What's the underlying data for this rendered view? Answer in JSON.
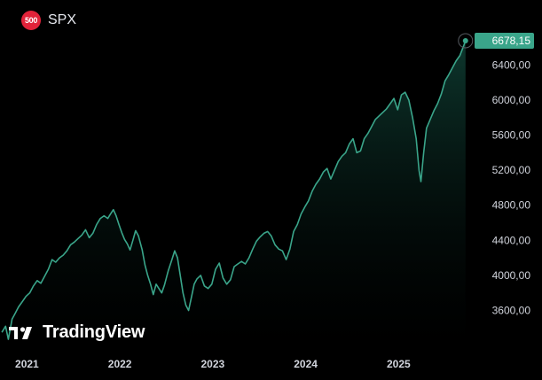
{
  "header": {
    "badge_text": "500",
    "symbol": "SPX"
  },
  "logo": {
    "text": "TradingView"
  },
  "colors": {
    "background": "#000000",
    "line": "#3aa58a",
    "area_top": "#0e3a30",
    "label_bg": "#3aa58a",
    "badge": "#e2233a",
    "axis_text": "#d1d4dc"
  },
  "chart_data": {
    "type": "area",
    "title": "SPX",
    "last_value": 6678.15,
    "last_value_label": "6678,15",
    "y_ticks": [
      3600,
      4000,
      4400,
      4800,
      5200,
      5600,
      6000,
      6400
    ],
    "y_tick_labels": [
      "3600,00",
      "4000,00",
      "4400,00",
      "4800,00",
      "5200,00",
      "5600,00",
      "6000,00",
      "6400,00"
    ],
    "x_ticks": [
      2021,
      2022,
      2023,
      2024,
      2025
    ],
    "x_tick_labels": [
      "2021",
      "2022",
      "2023",
      "2024",
      "2025"
    ],
    "x_range": [
      2020.74,
      2025.8
    ],
    "y_range": [
      3180,
      6900
    ],
    "series": [
      {
        "x": [
          2020.76,
          2020.8,
          2020.83,
          2020.87,
          2020.9,
          2020.94,
          2020.98,
          2021.02,
          2021.06,
          2021.1,
          2021.14,
          2021.18,
          2021.22,
          2021.26,
          2021.3,
          2021.34,
          2021.38,
          2021.42,
          2021.46,
          2021.5,
          2021.54,
          2021.58,
          2021.62,
          2021.66,
          2021.7,
          2021.74,
          2021.78,
          2021.82,
          2021.86,
          2021.9,
          2021.93,
          2021.96,
          2021.99,
          2022.02,
          2022.05,
          2022.08,
          2022.11,
          2022.14,
          2022.17,
          2022.2,
          2022.23,
          2022.27,
          2022.3,
          2022.33,
          2022.36,
          2022.39,
          2022.42,
          2022.45,
          2022.48,
          2022.51,
          2022.55,
          2022.59,
          2022.62,
          2022.65,
          2022.68,
          2022.71,
          2022.74,
          2022.77,
          2022.8,
          2022.83,
          2022.86,
          2022.9,
          2022.94,
          2022.98,
          2023.02,
          2023.06,
          2023.1,
          2023.14,
          2023.18,
          2023.22,
          2023.26,
          2023.3,
          2023.34,
          2023.38,
          2023.42,
          2023.46,
          2023.5,
          2023.54,
          2023.58,
          2023.62,
          2023.66,
          2023.7,
          2023.74,
          2023.78,
          2023.82,
          2023.86,
          2023.9,
          2023.94,
          2023.98,
          2024.02,
          2024.06,
          2024.1,
          2024.14,
          2024.18,
          2024.22,
          2024.26,
          2024.3,
          2024.34,
          2024.38,
          2024.42,
          2024.46,
          2024.5,
          2024.54,
          2024.58,
          2024.62,
          2024.66,
          2024.7,
          2024.74,
          2024.78,
          2024.82,
          2024.86,
          2024.9,
          2024.94,
          2024.98,
          2025.02,
          2025.06,
          2025.1,
          2025.14,
          2025.18,
          2025.22,
          2025.25,
          2025.27,
          2025.3,
          2025.33,
          2025.37,
          2025.41,
          2025.45,
          2025.49,
          2025.53,
          2025.57,
          2025.61,
          2025.65,
          2025.69,
          2025.73,
          2025.75
        ],
        "values": [
          3350,
          3420,
          3270,
          3500,
          3560,
          3640,
          3700,
          3760,
          3800,
          3880,
          3940,
          3910,
          3990,
          4070,
          4180,
          4150,
          4200,
          4230,
          4280,
          4350,
          4380,
          4420,
          4460,
          4520,
          4430,
          4480,
          4580,
          4650,
          4680,
          4650,
          4700,
          4750,
          4680,
          4580,
          4490,
          4410,
          4360,
          4290,
          4400,
          4510,
          4450,
          4290,
          4120,
          4000,
          3900,
          3780,
          3900,
          3850,
          3800,
          3890,
          4050,
          4180,
          4280,
          4200,
          4000,
          3800,
          3660,
          3600,
          3750,
          3900,
          3960,
          4000,
          3880,
          3850,
          3900,
          4070,
          4140,
          3970,
          3900,
          3950,
          4100,
          4130,
          4160,
          4130,
          4200,
          4300,
          4390,
          4440,
          4480,
          4500,
          4450,
          4350,
          4300,
          4280,
          4180,
          4300,
          4500,
          4580,
          4700,
          4780,
          4850,
          4960,
          5040,
          5100,
          5180,
          5220,
          5100,
          5200,
          5300,
          5360,
          5400,
          5500,
          5560,
          5400,
          5420,
          5560,
          5620,
          5700,
          5780,
          5820,
          5860,
          5900,
          5960,
          6020,
          5890,
          6060,
          6090,
          6000,
          5800,
          5560,
          5200,
          5070,
          5400,
          5680,
          5780,
          5880,
          5960,
          6070,
          6220,
          6290,
          6370,
          6450,
          6510,
          6620,
          6678.15
        ]
      }
    ]
  }
}
